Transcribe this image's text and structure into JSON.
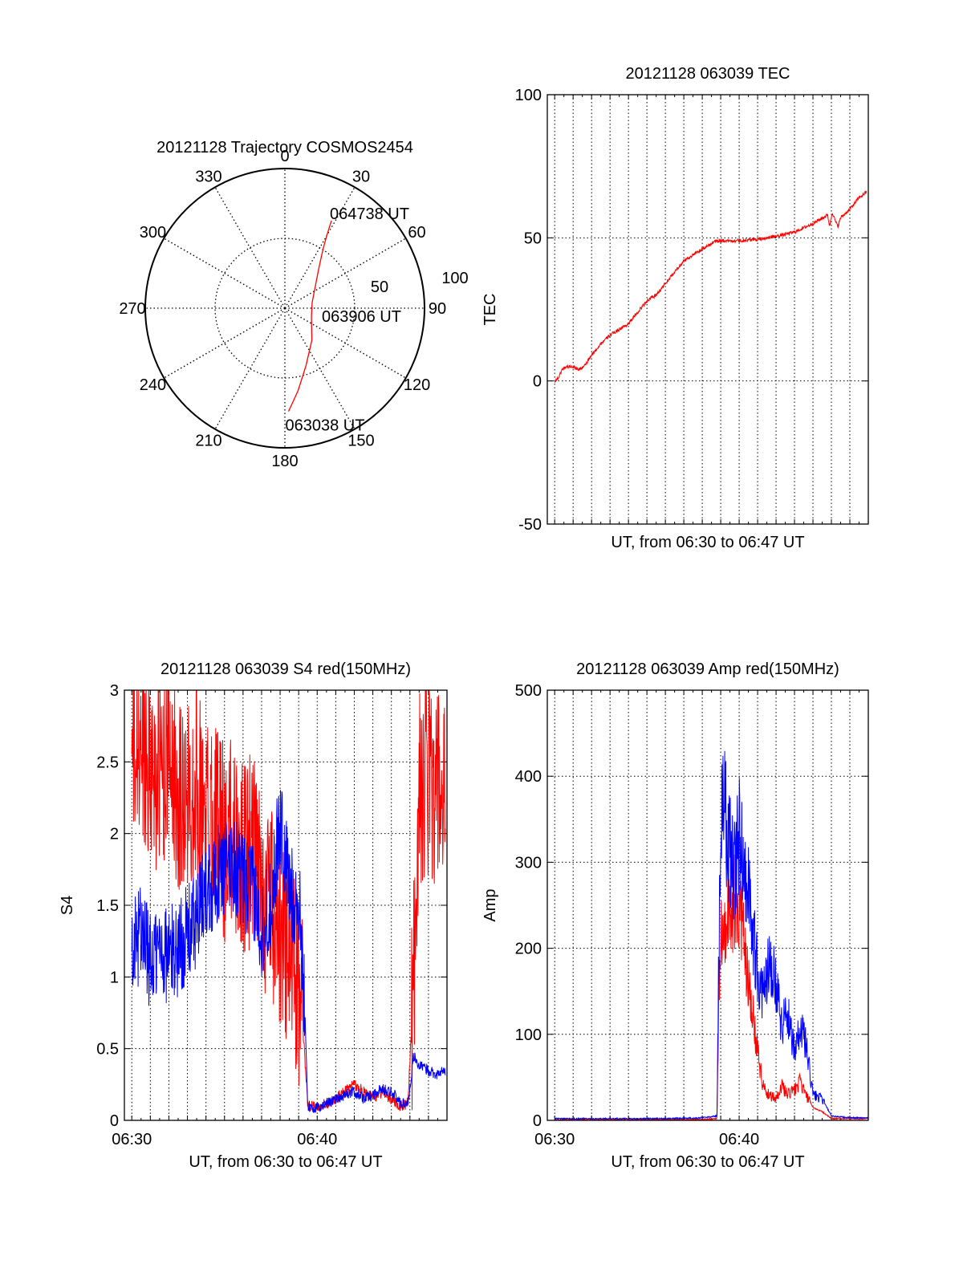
{
  "chart_data": [
    {
      "type": "polar",
      "title": "20121128 Trajectory COSMOS2454",
      "radial_range": [
        0,
        100
      ],
      "radial_ticks": [
        50,
        100
      ],
      "azimuth_labels": [
        "0",
        "30",
        "60",
        "90",
        "120",
        "150",
        "180",
        "210",
        "240",
        "270",
        "300",
        "330"
      ],
      "trajectory_color": "#ff0000",
      "trajectory": [
        {
          "az": 178,
          "r": 74
        },
        {
          "az": 171,
          "r": 60
        },
        {
          "az": 160,
          "r": 44
        },
        {
          "az": 140,
          "r": 30
        },
        {
          "az": 108,
          "r": 20
        },
        {
          "az": 78,
          "r": 20
        },
        {
          "az": 54,
          "r": 27
        },
        {
          "az": 40,
          "r": 38
        },
        {
          "az": 33,
          "r": 50
        },
        {
          "az": 30,
          "r": 60
        },
        {
          "az": 28,
          "r": 71
        }
      ],
      "annotations": [
        {
          "text": "064738 UT",
          "at": "end"
        },
        {
          "text": "063906 UT",
          "at": "middle"
        },
        {
          "text": "063038 UT",
          "at": "start"
        }
      ]
    },
    {
      "type": "line",
      "title": "20121128 063039 TEC",
      "xlabel": "UT, from 06:30 to 06:47 UT",
      "ylabel": "TEC",
      "xlim_minutes": [
        -0.4,
        17.0
      ],
      "ylim": [
        -50,
        100
      ],
      "yticks": [
        "-50",
        "0",
        "50",
        "100"
      ],
      "xticks": [],
      "grid": true,
      "series": [
        {
          "color": "#ff0000",
          "x": [
            0.0,
            0.2,
            0.4,
            0.6,
            1.0,
            1.3,
            1.6,
            2.0,
            2.5,
            3.0,
            3.5,
            4.0,
            4.5,
            5.0,
            5.5,
            6.0,
            6.5,
            7.0,
            7.5,
            8.0,
            8.5,
            8.7,
            9.0,
            10.0,
            11.0,
            12.0,
            13.0,
            14.0,
            14.8,
            14.9,
            15.05,
            15.2,
            15.35,
            15.5,
            16.0,
            16.5,
            16.9
          ],
          "y": [
            0,
            1,
            4,
            5,
            5,
            4,
            5,
            9,
            13,
            16,
            18,
            20,
            24,
            28,
            30,
            34,
            38,
            42,
            44,
            46,
            48,
            49,
            49,
            49,
            49.5,
            50.5,
            52,
            55,
            58,
            54,
            59,
            56,
            54,
            57,
            60,
            64,
            66
          ]
        }
      ]
    },
    {
      "type": "line",
      "title": "20121128 063039 S4 red(150MHz)",
      "xlabel": "UT, from 06:30 to 06:47 UT",
      "ylabel": "S4",
      "xlim_minutes": [
        -0.4,
        17.0
      ],
      "ylim": [
        0,
        3
      ],
      "yticks": [
        "0",
        "0.5",
        "1",
        "1.5",
        "2",
        "2.5",
        "3"
      ],
      "xticks": [
        {
          "minute": 0,
          "label": "06:30"
        },
        {
          "minute": 10,
          "label": "06:40"
        }
      ],
      "grid": true,
      "series": [
        {
          "color": "#ff0000",
          "x": [
            0,
            0.5,
            1,
            1.5,
            2,
            2.5,
            3,
            3.5,
            4,
            4.5,
            5,
            5.5,
            6,
            6.5,
            7,
            7.5,
            8,
            8.5,
            9.0,
            9.2,
            9.5,
            10,
            10.5,
            11,
            11.5,
            12,
            12.5,
            13,
            13.5,
            14,
            14.5,
            14.9,
            15.2,
            15.5,
            16,
            16.5,
            16.9
          ],
          "y": [
            2.5,
            2.6,
            2.5,
            2.4,
            2.6,
            2.3,
            2.2,
            2.4,
            2.1,
            2.2,
            1.9,
            2.0,
            1.8,
            1.9,
            1.6,
            1.5,
            1.3,
            1.2,
            0.9,
            0.7,
            0.1,
            0.1,
            0.12,
            0.15,
            0.2,
            0.25,
            0.2,
            0.15,
            0.2,
            0.15,
            0.1,
            0.12,
            1.0,
            2.3,
            2.4,
            2.3,
            2.2
          ]
        },
        {
          "color": "#0000ff",
          "x": [
            0,
            0.5,
            1,
            1.5,
            2,
            2.5,
            3,
            3.5,
            4,
            4.5,
            5,
            5.5,
            6,
            6.5,
            7,
            7.5,
            8,
            8.5,
            9.0,
            9.2,
            9.5,
            10,
            10.5,
            11,
            11.5,
            12,
            12.5,
            13,
            13.5,
            14,
            14.5,
            14.9,
            15.2,
            15.5,
            16,
            16.5,
            16.9
          ],
          "y": [
            1.2,
            1.3,
            1.1,
            1.2,
            1.15,
            1.2,
            1.3,
            1.4,
            1.6,
            1.7,
            1.75,
            1.8,
            1.65,
            1.6,
            1.35,
            1.5,
            2.1,
            1.6,
            1.5,
            1.2,
            0.1,
            0.08,
            0.12,
            0.15,
            0.18,
            0.2,
            0.15,
            0.18,
            0.22,
            0.2,
            0.12,
            0.12,
            0.45,
            0.38,
            0.35,
            0.32,
            0.35
          ]
        }
      ]
    },
    {
      "type": "line",
      "title": "20121128 063039 Amp red(150MHz)",
      "xlabel": "UT, from 06:30 to 06:47 UT",
      "ylabel": "Amp",
      "xlim_minutes": [
        -0.4,
        17.0
      ],
      "ylim": [
        0,
        500
      ],
      "yticks": [
        "0",
        "100",
        "200",
        "300",
        "400",
        "500"
      ],
      "xticks": [
        {
          "minute": 0,
          "label": "06:30"
        },
        {
          "minute": 10,
          "label": "06:40"
        }
      ],
      "grid": true,
      "series": [
        {
          "color": "#ff0000",
          "x": [
            0,
            2,
            4,
            6,
            8,
            8.8,
            8.9,
            9.0,
            9.2,
            9.5,
            9.8,
            10.0,
            10.3,
            10.6,
            11.0,
            11.3,
            11.6,
            12.0,
            12.3,
            12.6,
            13.0,
            13.3,
            13.6,
            14.0,
            14.5,
            15.0,
            16.0,
            17.0
          ],
          "y": [
            1,
            1,
            1,
            1,
            1,
            2,
            150,
            220,
            230,
            240,
            260,
            250,
            200,
            150,
            80,
            40,
            30,
            25,
            40,
            30,
            35,
            45,
            30,
            15,
            10,
            2,
            2,
            2
          ]
        },
        {
          "color": "#0000ff",
          "x": [
            0,
            2,
            4,
            6,
            8,
            8.8,
            8.9,
            9.0,
            9.2,
            9.5,
            9.8,
            10.0,
            10.3,
            10.6,
            11.0,
            11.3,
            11.6,
            12.0,
            12.3,
            12.6,
            13.0,
            13.3,
            13.6,
            14.0,
            14.5,
            15.0,
            16.0,
            17.0
          ],
          "y": [
            2,
            2,
            2,
            2,
            3,
            5,
            200,
            330,
            360,
            310,
            290,
            340,
            300,
            250,
            170,
            140,
            190,
            160,
            110,
            130,
            80,
            110,
            90,
            30,
            25,
            5,
            3,
            3
          ]
        }
      ]
    }
  ]
}
